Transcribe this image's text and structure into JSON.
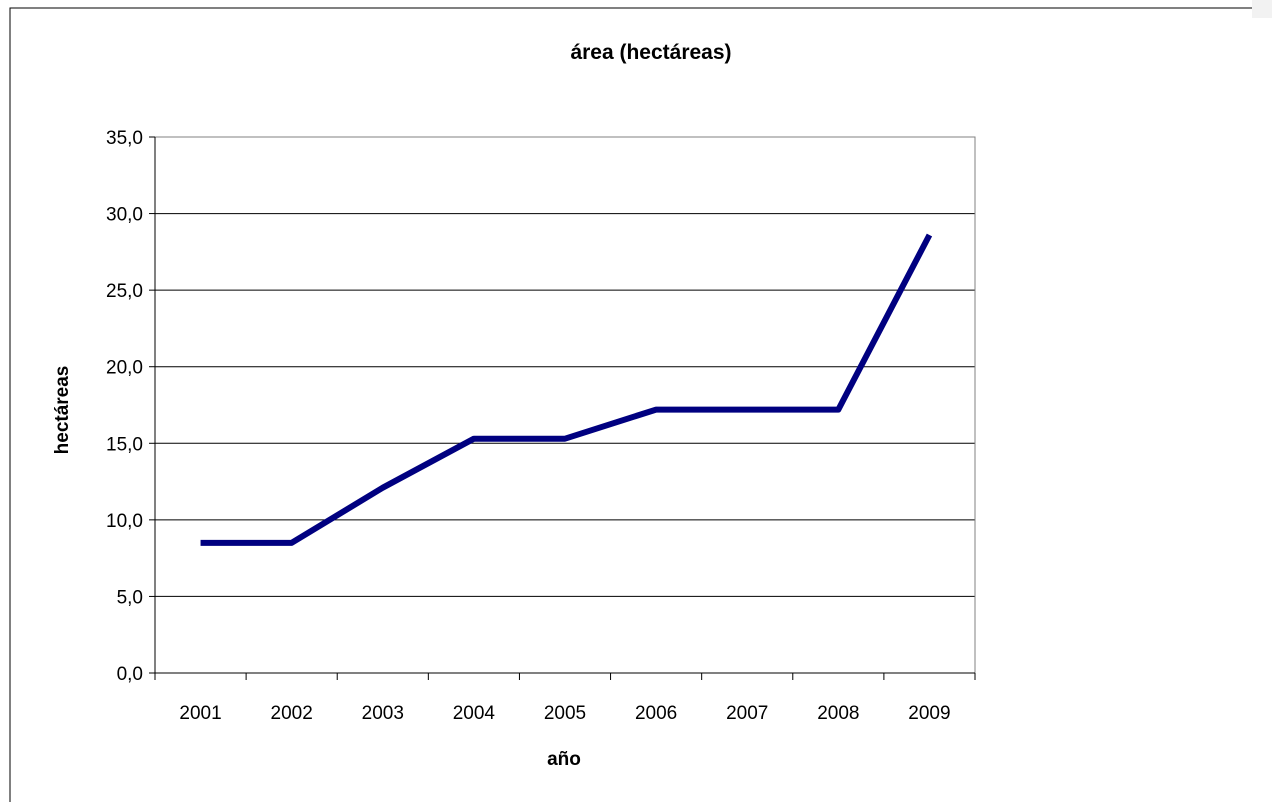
{
  "chart_data": {
    "type": "line",
    "title": "área (hectáreas)",
    "xlabel": "año",
    "ylabel": "hectáreas",
    "categories": [
      "2001",
      "2002",
      "2003",
      "2004",
      "2005",
      "2006",
      "2007",
      "2008",
      "2009"
    ],
    "series": [
      {
        "values": [
          8.5,
          8.5,
          12.1,
          15.3,
          15.3,
          17.2,
          17.2,
          17.2,
          28.6
        ],
        "color": "#000080"
      }
    ],
    "ylim": [
      0,
      35
    ],
    "yticks": [
      0,
      5,
      10,
      15,
      20,
      25,
      30,
      35
    ],
    "ytick_labels": [
      "0,0",
      "5,0",
      "10,0",
      "15,0",
      "20,0",
      "25,0",
      "30,0",
      "35,0"
    ],
    "grid": "horizontal",
    "legend": "none"
  }
}
